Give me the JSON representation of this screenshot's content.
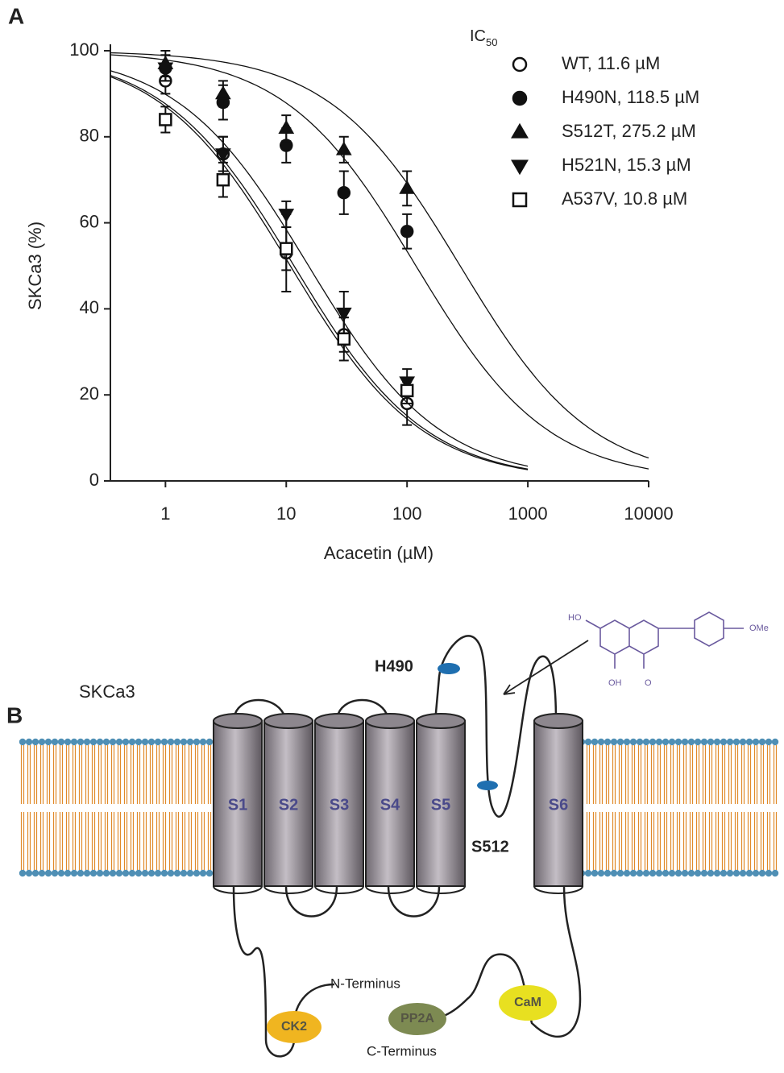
{
  "panel_a_label": "A",
  "panel_b_label": "B",
  "chart_data": {
    "type": "scatter",
    "x_label": "Acacetin (µM)",
    "y_label": "SKCa3 (%)",
    "legend_title": {
      "main": "IC",
      "sub": "50"
    },
    "x_scale": "log",
    "xlim": [
      0.35,
      10000
    ],
    "ylim": [
      0,
      100
    ],
    "xticks": [
      1,
      10,
      100,
      1000,
      10000
    ],
    "yticks": [
      0,
      20,
      40,
      60,
      80,
      100
    ],
    "grid": false,
    "legend_position": "top-right",
    "x": [
      1,
      3,
      10,
      30,
      100
    ],
    "series": [
      {
        "name": "WT, 11.6 µM",
        "ic50": 11.6,
        "marker": "circle-open",
        "color": "#111111",
        "values": [
          93,
          76,
          53,
          34,
          18
        ],
        "errors": [
          3,
          4,
          9,
          4,
          5
        ]
      },
      {
        "name": "H490N, 118.5 µM",
        "ic50": 118.5,
        "marker": "circle",
        "color": "#111111",
        "values": [
          96,
          88,
          78,
          67,
          58
        ],
        "errors": [
          3,
          4,
          4,
          5,
          4
        ]
      },
      {
        "name": "S512T, 275.2 µM",
        "ic50": 275.2,
        "marker": "triangle-up",
        "color": "#111111",
        "values": [
          97,
          90,
          82,
          77,
          68
        ],
        "errors": [
          3,
          3,
          3,
          3,
          4
        ]
      },
      {
        "name": "H521N, 15.3 µM",
        "ic50": 15.3,
        "marker": "triangle-down",
        "color": "#111111",
        "values": [
          96,
          76,
          62,
          39,
          23
        ],
        "errors": [
          3,
          4,
          3,
          5,
          3
        ]
      },
      {
        "name": "A537V, 10.8 µM",
        "ic50": 10.8,
        "marker": "square-open",
        "color": "#111111",
        "values": [
          84,
          70,
          54,
          33,
          21
        ],
        "errors": [
          3,
          4,
          5,
          5,
          3
        ]
      }
    ]
  },
  "diagram": {
    "channel_label": "SKCa3",
    "segments": [
      "S1",
      "S2",
      "S3",
      "S4",
      "S5",
      "S6"
    ],
    "residues": [
      "H490",
      "S512"
    ],
    "n_terminus": "N-Terminus",
    "c_terminus": "C-Terminus",
    "partners": [
      "CK2",
      "PP2A",
      "CaM"
    ],
    "molecule_labels": [
      "HO",
      "OH",
      "O",
      "OMe"
    ]
  }
}
